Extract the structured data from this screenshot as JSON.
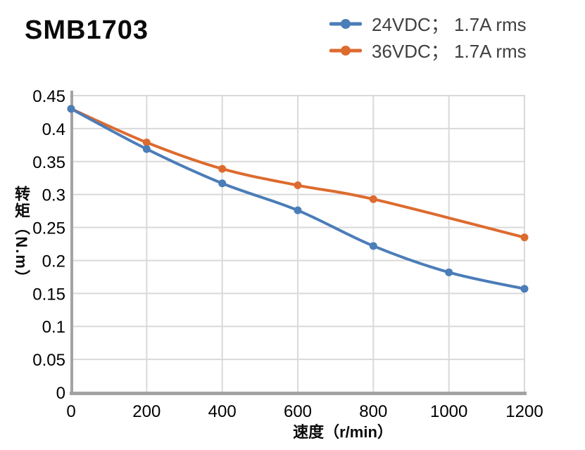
{
  "page": {
    "title": "SMB1703"
  },
  "colors": {
    "series_24vdc": "#4b7db8",
    "series_36vdc": "#dd6b2f",
    "gridline": "#d9d9d9",
    "axis": "#a3a3a3",
    "tick_text": "#000000",
    "legend_text": "#3f3f3f",
    "background": "#ffffff"
  },
  "legend": {
    "items": [
      {
        "label": "24VDC； 1.7A rms"
      },
      {
        "label": "36VDC； 1.7A rms"
      }
    ]
  },
  "chart_data": {
    "type": "line",
    "title": "SMB1703",
    "xlabel": "速度（r/min）",
    "ylabel": "转矩（N.m）",
    "xlim": [
      0,
      1200
    ],
    "ylim": [
      0,
      0.45
    ],
    "x_ticks": [
      0,
      200,
      400,
      600,
      800,
      1000,
      1200
    ],
    "x_tick_labels": [
      "0",
      "200",
      "400",
      "600",
      "800",
      "1000",
      "1200"
    ],
    "y_ticks": [
      0,
      0.05,
      0.1,
      0.15,
      0.2,
      0.25,
      0.3,
      0.35,
      0.4,
      0.45
    ],
    "y_tick_labels": [
      "0",
      "0.05",
      "0.1",
      "0.15",
      "0.2",
      "0.25",
      "0.3",
      "0.35",
      "0.4",
      "0.45"
    ],
    "grid": true,
    "line_style": "smooth",
    "markers": "circle",
    "legend_position": "top-right",
    "series": [
      {
        "name": "24VDC； 1.7A rms",
        "color": "#4b7db8",
        "x": [
          0,
          200,
          400,
          600,
          800,
          1000,
          1200
        ],
        "y": [
          0.43,
          0.369,
          0.317,
          0.276,
          0.222,
          0.182,
          0.157
        ]
      },
      {
        "name": "36VDC； 1.7A rms",
        "color": "#dd6b2f",
        "x": [
          0,
          200,
          400,
          600,
          800,
          1200
        ],
        "y": [
          0.43,
          0.379,
          0.339,
          0.314,
          0.293,
          0.235
        ]
      }
    ]
  }
}
